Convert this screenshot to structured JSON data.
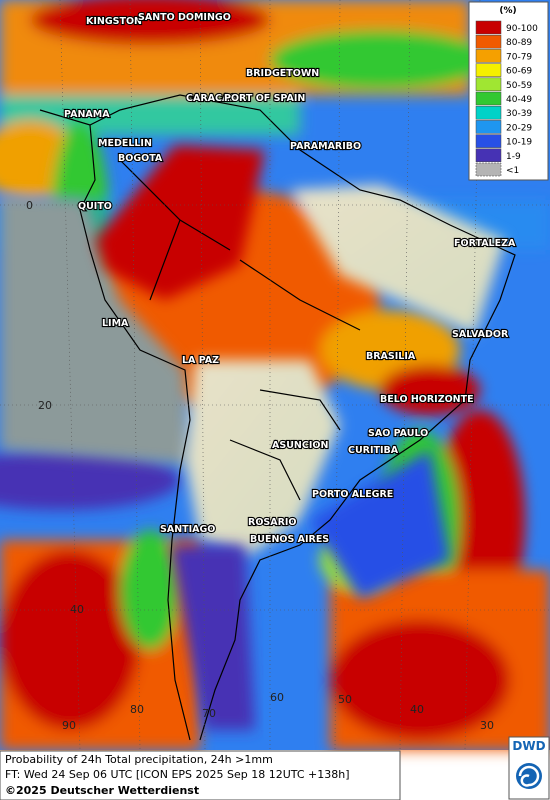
{
  "legend": {
    "title": "(%)",
    "items": [
      {
        "label": "90-100",
        "color": "#c80000"
      },
      {
        "label": "80-89",
        "color": "#f05a00"
      },
      {
        "label": "70-79",
        "color": "#f5a000"
      },
      {
        "label": "60-69",
        "color": "#f5f000"
      },
      {
        "label": "50-59",
        "color": "#a0e632"
      },
      {
        "label": "40-49",
        "color": "#32c832"
      },
      {
        "label": "30-39",
        "color": "#00d2c8"
      },
      {
        "label": "20-29",
        "color": "#1e96f0"
      },
      {
        "label": "10-19",
        "color": "#2850e6"
      },
      {
        "label": "1-9",
        "color": "#4632b4"
      },
      {
        "label": "<1",
        "color": "#b4b4b4"
      }
    ]
  },
  "cities": [
    "KINGSTON",
    "SANTO DOMINGO",
    "BRIDGETOWN",
    "CARACAS",
    "PORT OF SPAIN",
    "PANAMA",
    "MEDELLIN",
    "BOGOTA",
    "PARAMARIBO",
    "QUITO",
    "FORTALEZA",
    "LIMA",
    "SALVADOR",
    "BRASILIA",
    "LA PAZ",
    "BELO HORIZONTE",
    "SAO PAULO",
    "ASUNCION",
    "CURITIBA",
    "PORTO ALEGRE",
    "ROSARIO",
    "SANTIAGO",
    "BUENOS AIRES"
  ],
  "grid_labels": [
    "0",
    "20",
    "40",
    "90",
    "80",
    "70",
    "60",
    "50",
    "40",
    "30"
  ],
  "footer": {
    "line1": "Probability of 24h Total precipitation, 24h >1mm",
    "line2": "FT: Wed 24 Sep 06 UTC [ICON EPS 2025 Sep 18 12UTC +138h]",
    "copyright": "©2025 Deutscher Wetterdienst"
  },
  "logo": "DWD"
}
